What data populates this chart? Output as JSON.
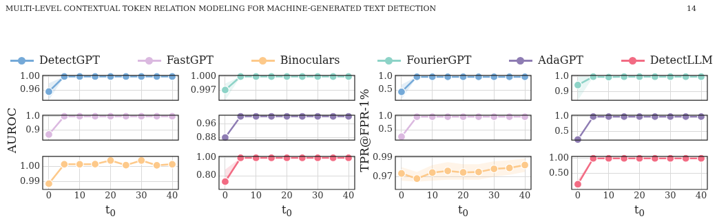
{
  "chart_data": [
    {
      "type": "line",
      "annotations": [
        "MULTI-LEVEL CONTEXTUAL TOKEN RELATION MODELING FOR MACHINE-GENERATED TEXT DETECTION",
        "14"
      ],
      "legend": "top",
      "grid": true,
      "marker": "circle",
      "tick_labels": "y",
      "x": [
        0,
        5,
        10,
        15,
        20,
        25,
        30,
        35,
        40
      ],
      "xlim": [
        -2,
        42
      ],
      "xticks": [
        0,
        10,
        20,
        30,
        40
      ],
      "ylim": [
        0.929,
        1.0034
      ],
      "yticks": [
        {
          "value": 1,
          "label": "1.00"
        },
        0.96
      ],
      "series": [
        {
          "name": "DetectGPT",
          "color": "#74a9d8",
          "values": [
            0.955,
            1.0,
            1.0,
            1.0,
            1.0,
            1.0,
            1.0,
            1.0,
            1.0
          ],
          "lower": [
            0.93,
            1.0,
            1.0,
            1.0,
            1.0,
            1.0,
            1.0,
            1.0,
            1.0
          ],
          "upper": [
            0.98,
            1.0,
            1.0,
            1.0,
            1.0,
            1.0,
            1.0,
            1.0,
            1.0
          ]
        }
      ]
    },
    {
      "type": "line",
      "ylabel": "AUROC",
      "legend": "top",
      "grid": true,
      "marker": "circle",
      "tick_labels": "y",
      "x": [
        0,
        5,
        10,
        15,
        20,
        25,
        30,
        35,
        40
      ],
      "xlim": [
        -2,
        42
      ],
      "xticks": [
        0,
        10,
        20,
        30,
        40
      ],
      "ylim": [
        0.827,
        1.008
      ],
      "yticks": [
        {
          "value": 1,
          "label": "1.0"
        },
        0.9
      ],
      "series": [
        {
          "name": "FastGPT",
          "color": "#dbb9e0",
          "values": [
            0.868,
            1.0,
            1.0,
            1.0,
            1.0,
            1.0,
            1.0,
            1.0,
            1.0
          ]
        }
      ]
    },
    {
      "type": "line",
      "xlabel": "t$_{0}$",
      "legend": "top",
      "grid": true,
      "marker": "circle",
      "x": [
        0,
        5,
        10,
        15,
        20,
        25,
        30,
        35,
        40
      ],
      "xlim": [
        -2,
        42
      ],
      "xticks": [
        0,
        10,
        20,
        30,
        40
      ],
      "ylim": [
        0.9845,
        1.007
      ],
      "yticks": [
        {
          "value": 1,
          "label": "1.00"
        },
        0.99
      ],
      "series": [
        {
          "name": "Binoculars",
          "color": "#fdc98a",
          "values": [
            0.9884,
            1.0016,
            1.0016,
            1.0017,
            1.0042,
            1.001,
            1.0042,
            1.0009,
            1.0016
          ],
          "lower": [
            0.988,
            1.001,
            1.001,
            1.0011,
            1.0035,
            1.0004,
            1.0036,
            1.0003,
            1.001
          ],
          "upper": [
            0.9888,
            1.0022,
            1.0022,
            1.0023,
            1.0049,
            1.0016,
            1.0048,
            1.0015,
            1.0022
          ]
        }
      ]
    },
    {
      "type": "line",
      "legend": "top",
      "grid": true,
      "marker": "circle",
      "tick_labels": "y",
      "x": [
        0,
        5,
        10,
        15,
        20,
        25,
        30,
        35,
        40
      ],
      "xlim": [
        -2,
        42
      ],
      "xticks": [
        0,
        10,
        20,
        30,
        40
      ],
      "ylim": [
        0.99488,
        1.00025
      ],
      "yticks": [
        {
          "value": 1,
          "label": "1.000"
        },
        0.997
      ],
      "series": [
        {
          "name": "FourierGPT",
          "color": "#8dd3c7",
          "values": [
            0.9971,
            1.0,
            1.0,
            1.0,
            1.0,
            1.0,
            1.0,
            1.0,
            1.0
          ],
          "lower": [
            0.9949,
            1.0,
            1.0,
            1.0,
            1.0,
            1.0,
            1.0,
            1.0,
            1.0
          ],
          "upper": [
            0.9985,
            1.0,
            1.0,
            1.0,
            1.0,
            1.0,
            1.0,
            1.0,
            1.0
          ]
        }
      ]
    },
    {
      "type": "line",
      "legend": "top",
      "grid": true,
      "marker": "circle",
      "tick_labels": "y",
      "x": [
        0,
        5,
        10,
        15,
        20,
        25,
        30,
        35,
        40
      ],
      "xlim": [
        -2,
        42
      ],
      "xticks": [
        0,
        10,
        20,
        30,
        40
      ],
      "ylim": [
        0.866,
        1.009
      ],
      "yticks": [
        0.96,
        0.88
      ],
      "series": [
        {
          "name": "AdaGPT",
          "color": "#8e7cb3",
          "values": [
            0.881,
            1.002,
            1.002,
            1.002,
            1.002,
            1.002,
            1.002,
            1.002,
            1.002
          ]
        }
      ]
    },
    {
      "type": "line",
      "xlabel": "t$_{0}$",
      "legend": "top",
      "grid": true,
      "marker": "circle",
      "x": [
        0,
        5,
        10,
        15,
        20,
        25,
        30,
        35,
        40
      ],
      "xlim": [
        -2,
        42
      ],
      "xticks": [
        0,
        10,
        20,
        30,
        40
      ],
      "ylim": [
        0.647,
        1.0165
      ],
      "yticks": [
        {
          "value": 1,
          "label": "1.00"
        },
        {
          "value": 0.8,
          "label": "0.80"
        }
      ],
      "series": [
        {
          "name": "DetectLLM",
          "color": "#f26b83",
          "values": [
            0.734,
            1.0,
            1.0,
            1.0,
            1.0,
            1.0,
            1.0,
            1.0,
            1.0
          ],
          "lower": [
            0.7,
            1.0,
            1.0,
            1.0,
            1.0,
            1.0,
            1.0,
            1.0,
            1.0
          ],
          "upper": [
            0.87,
            1.0,
            1.0,
            1.0,
            1.0,
            1.0,
            1.0,
            1.0,
            1.0
          ]
        }
      ]
    },
    {
      "type": "line",
      "grid": true,
      "marker": "circle",
      "tick_labels": "y",
      "x": [
        0,
        5,
        10,
        15,
        20,
        25,
        30,
        35,
        40
      ],
      "xlim": [
        -2,
        42
      ],
      "xticks": [
        0,
        10,
        20,
        30,
        40
      ],
      "ylim": [
        0.116,
        1.043
      ],
      "yticks": [
        {
          "value": 1,
          "label": "1.0"
        },
        0.5
      ],
      "series": [
        {
          "color": "#74a9d8",
          "values": [
            0.43,
            0.99,
            0.99,
            0.99,
            0.99,
            0.99,
            0.99,
            0.99,
            0.99
          ],
          "lower": [
            0.15,
            0.98,
            0.98,
            0.98,
            0.98,
            0.98,
            0.98,
            0.98,
            0.98
          ],
          "upper": [
            0.7,
            1.0,
            1.0,
            1.0,
            1.0,
            1.0,
            1.0,
            1.0,
            1.0
          ]
        }
      ]
    },
    {
      "type": "line",
      "ylabel": "TPR@FPR-1%",
      "grid": true,
      "marker": "circle",
      "tick_labels": "y",
      "x": [
        0,
        5,
        10,
        15,
        20,
        25,
        30,
        35,
        40
      ],
      "xlim": [
        -2,
        42
      ],
      "xticks": [
        0,
        10,
        20,
        30,
        40
      ],
      "ylim": [
        0.11,
        1.049
      ],
      "yticks": [
        {
          "value": 1,
          "label": "1.0"
        },
        0.5
      ],
      "series": [
        {
          "color": "#dbb9e0",
          "values": [
            0.24,
            0.99,
            0.99,
            0.99,
            0.99,
            0.99,
            0.99,
            0.99,
            0.99
          ]
        }
      ]
    },
    {
      "type": "line",
      "xlabel": "t$_{0}$",
      "grid": true,
      "marker": "circle",
      "x": [
        0,
        5,
        10,
        15,
        20,
        25,
        30,
        35,
        40
      ],
      "xlim": [
        -2,
        42
      ],
      "xticks": [
        0,
        10,
        20,
        30,
        40
      ],
      "ylim": [
        0.957,
        0.991
      ],
      "yticks": [
        0.99,
        0.97
      ],
      "series": [
        {
          "color": "#fdc98a",
          "values": [
            0.9734,
            0.9681,
            0.9743,
            0.976,
            0.9745,
            0.9749,
            0.9781,
            0.9791,
            0.9821
          ],
          "lower": [
            0.966,
            0.965,
            0.966,
            0.967,
            0.967,
            0.967,
            0.97,
            0.972,
            0.975
          ],
          "upper": [
            0.98,
            0.975,
            0.982,
            0.985,
            0.983,
            0.983,
            0.986,
            0.987,
            0.989
          ]
        }
      ]
    },
    {
      "type": "line",
      "grid": true,
      "marker": "circle",
      "tick_labels": "y",
      "x": [
        0,
        5,
        10,
        15,
        20,
        25,
        30,
        35,
        40
      ],
      "xlim": [
        -2,
        42
      ],
      "xticks": [
        0,
        10,
        20,
        30,
        40
      ],
      "ylim": [
        0.844,
        1.0075
      ],
      "yticks": [
        {
          "value": 1,
          "label": "1.0"
        },
        0.9
      ],
      "series": [
        {
          "color": "#8dd3c7",
          "values": [
            0.944,
            0.999,
            0.996,
            0.999,
            0.999,
            0.999,
            0.999,
            0.999,
            0.999
          ],
          "lower": [
            0.844,
            0.998,
            0.995,
            0.998,
            0.998,
            0.998,
            0.998,
            0.998,
            0.998
          ],
          "upper": [
            1.0,
            1.0,
            0.997,
            1.0,
            1.0,
            1.0,
            1.0,
            1.0,
            1.0
          ]
        }
      ]
    },
    {
      "type": "line",
      "grid": true,
      "marker": "circle",
      "tick_labels": "y",
      "x": [
        0,
        5,
        10,
        15,
        20,
        25,
        30,
        35,
        40
      ],
      "xlim": [
        -2,
        42
      ],
      "xticks": [
        0,
        10,
        20,
        30,
        40
      ],
      "ylim": [
        0.22,
        1.048
      ],
      "yticks": [
        {
          "value": 1,
          "label": "1.0"
        },
        0.5
      ],
      "series": [
        {
          "color": "#8e7cb3",
          "values": [
            0.24,
            1.0,
            1.0,
            1.0,
            1.0,
            1.0,
            1.0,
            1.0,
            1.0
          ]
        }
      ]
    },
    {
      "type": "line",
      "xlabel": "t$_{0}$",
      "grid": true,
      "marker": "circle",
      "x": [
        0,
        5,
        10,
        15,
        20,
        25,
        30,
        35,
        40
      ],
      "xlim": [
        -2,
        42
      ],
      "xticks": [
        0,
        10,
        20,
        30,
        40
      ],
      "ylim": [
        -0.007,
        1.054
      ],
      "yticks": [
        {
          "value": 1,
          "label": "1.00"
        },
        {
          "value": 0.5,
          "label": "0.50"
        }
      ],
      "series": [
        {
          "color": "#f26b83",
          "values": [
            0.16,
            0.99,
            0.99,
            0.99,
            0.99,
            0.99,
            0.99,
            0.99,
            0.99
          ],
          "lower": [
            0.1,
            0.99,
            0.99,
            0.99,
            0.99,
            0.99,
            0.99,
            0.99,
            0.99
          ],
          "upper": [
            0.3,
            1.0,
            1.0,
            1.0,
            1.0,
            1.0,
            1.0,
            1.0,
            1.0
          ]
        }
      ]
    }
  ]
}
